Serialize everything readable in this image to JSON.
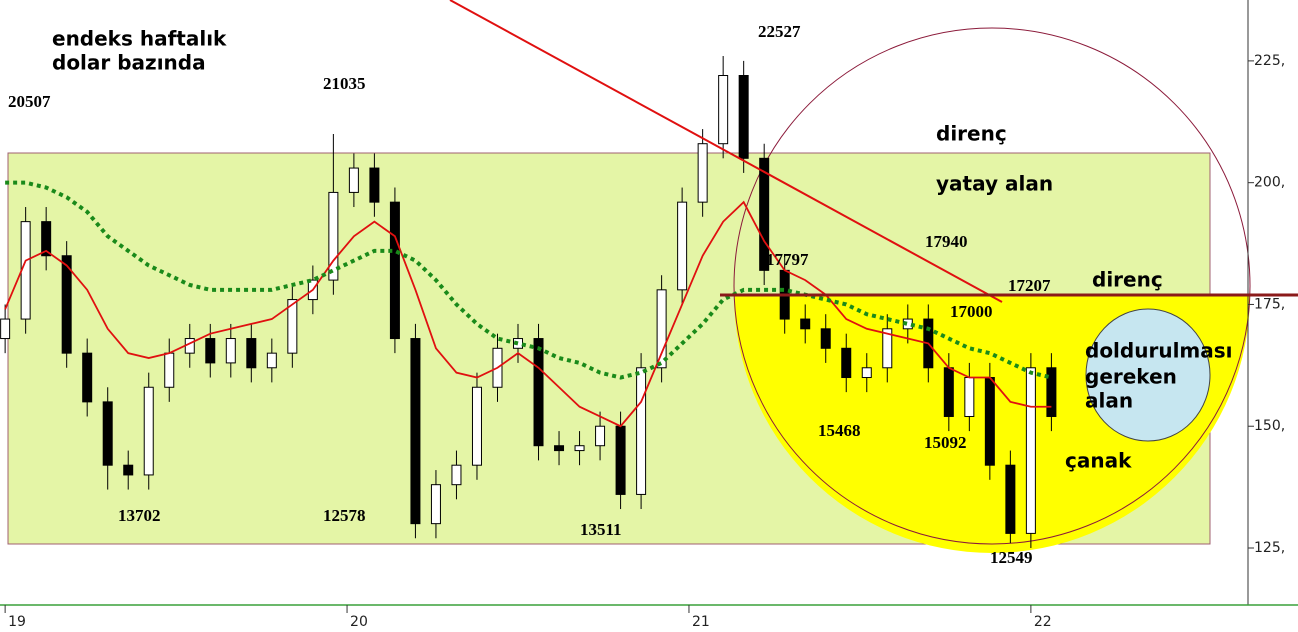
{
  "chart_data": {
    "type": "candlestick",
    "x": [
      19.0,
      19.06,
      19.12,
      19.18,
      19.24,
      19.3,
      19.36,
      19.42,
      19.48,
      19.54,
      19.6,
      19.66,
      19.72,
      19.78,
      19.84,
      19.9,
      19.96,
      20.02,
      20.08,
      20.14,
      20.2,
      20.26,
      20.32,
      20.38,
      20.44,
      20.5,
      20.56,
      20.62,
      20.68,
      20.74,
      20.8,
      20.86,
      20.92,
      20.98,
      21.04,
      21.1,
      21.16,
      21.22,
      21.28,
      21.34,
      21.4,
      21.46,
      21.52,
      21.58,
      21.64,
      21.7,
      21.76,
      21.82,
      21.88,
      21.94,
      22.0,
      22.06
    ],
    "open": [
      168,
      172,
      192,
      185,
      165,
      155,
      142,
      140,
      158,
      165,
      168,
      163,
      168,
      162,
      165,
      176,
      180,
      198,
      203,
      196,
      168,
      130,
      138,
      142,
      158,
      166,
      168,
      146,
      145,
      146,
      150,
      136,
      162,
      178,
      196,
      208,
      222,
      205,
      182,
      172,
      170,
      166,
      160,
      162,
      170,
      172,
      162,
      152,
      160,
      142,
      128,
      162
    ],
    "high": [
      175,
      195,
      195,
      188,
      168,
      158,
      145,
      161,
      168,
      171,
      171,
      171,
      171,
      168,
      179,
      183,
      210,
      206,
      206,
      199,
      171,
      141,
      145,
      161,
      169,
      171,
      171,
      149,
      149,
      153,
      153,
      165,
      181,
      199,
      211,
      226,
      225,
      208,
      185,
      175,
      173,
      169,
      165,
      173,
      175,
      175,
      165,
      163,
      163,
      145,
      165,
      165
    ],
    "low": [
      165,
      169,
      182,
      162,
      152,
      137,
      137,
      137,
      155,
      162,
      160,
      160,
      159,
      159,
      162,
      173,
      177,
      195,
      193,
      165,
      127,
      127,
      135,
      139,
      155,
      163,
      143,
      142,
      142,
      143,
      133,
      133,
      159,
      175,
      193,
      205,
      202,
      179,
      169,
      167,
      163,
      157,
      157,
      159,
      167,
      159,
      149,
      149,
      139,
      126,
      125,
      149
    ],
    "close": [
      172,
      192,
      185,
      165,
      155,
      142,
      140,
      158,
      165,
      168,
      163,
      168,
      162,
      165,
      176,
      180,
      198,
      203,
      196,
      168,
      130,
      138,
      142,
      158,
      166,
      168,
      146,
      145,
      146,
      150,
      136,
      162,
      178,
      196,
      208,
      222,
      205,
      182,
      172,
      170,
      166,
      160,
      162,
      170,
      172,
      162,
      152,
      160,
      142,
      128,
      162,
      152
    ],
    "ma_lines": [
      {
        "color": "#e01010",
        "style": "solid",
        "values": [
          174,
          184,
          186,
          183,
          178,
          170,
          165,
          164,
          165,
          167,
          169,
          170,
          171,
          172,
          175,
          178,
          184,
          189,
          192,
          189,
          178,
          166,
          161,
          160,
          162,
          165,
          162,
          158,
          154,
          152,
          150,
          155,
          165,
          175,
          185,
          192,
          196,
          188,
          182,
          180,
          177,
          172,
          170,
          169,
          168,
          167,
          162,
          160,
          160,
          155,
          154,
          154
        ]
      },
      {
        "color": "#1a8a1a",
        "style": "dotted",
        "values": [
          200,
          200,
          199,
          197,
          194,
          189,
          186,
          183,
          181,
          179,
          178,
          178,
          178,
          178,
          179,
          180,
          182,
          184,
          186,
          186,
          184,
          180,
          175,
          171,
          168,
          167,
          166,
          164,
          163,
          161,
          160,
          161,
          163,
          167,
          171,
          176,
          178,
          178,
          178,
          177,
          176,
          175,
          173,
          172,
          171,
          170,
          168,
          166,
          165,
          163,
          161,
          160
        ]
      }
    ],
    "up_color": "#ffffff",
    "down_color": "#000000",
    "xlim": [
      18.985,
      22.635
    ],
    "xticks": [
      19,
      20,
      21,
      22
    ],
    "ylim": [
      113.3,
      237.5
    ],
    "yticks": [
      {
        "value": 125,
        "label": "125,"
      },
      {
        "value": 150,
        "label": "150,"
      },
      {
        "value": 175,
        "label": "175,"
      },
      {
        "value": 200,
        "label": "200,"
      },
      {
        "value": 225,
        "label": "225,"
      }
    ],
    "annotations": [
      "endeks haftalık",
      "dolar bazında",
      "20507",
      "21035",
      "22527",
      "13702",
      "12578",
      "13511",
      "17797",
      "17940",
      "17207",
      "17000",
      "15468",
      "15092",
      "12549",
      "direnç",
      "yatay alan",
      "direnç",
      "doldurulması",
      "gereken",
      "alan",
      "çanak"
    ]
  }
}
